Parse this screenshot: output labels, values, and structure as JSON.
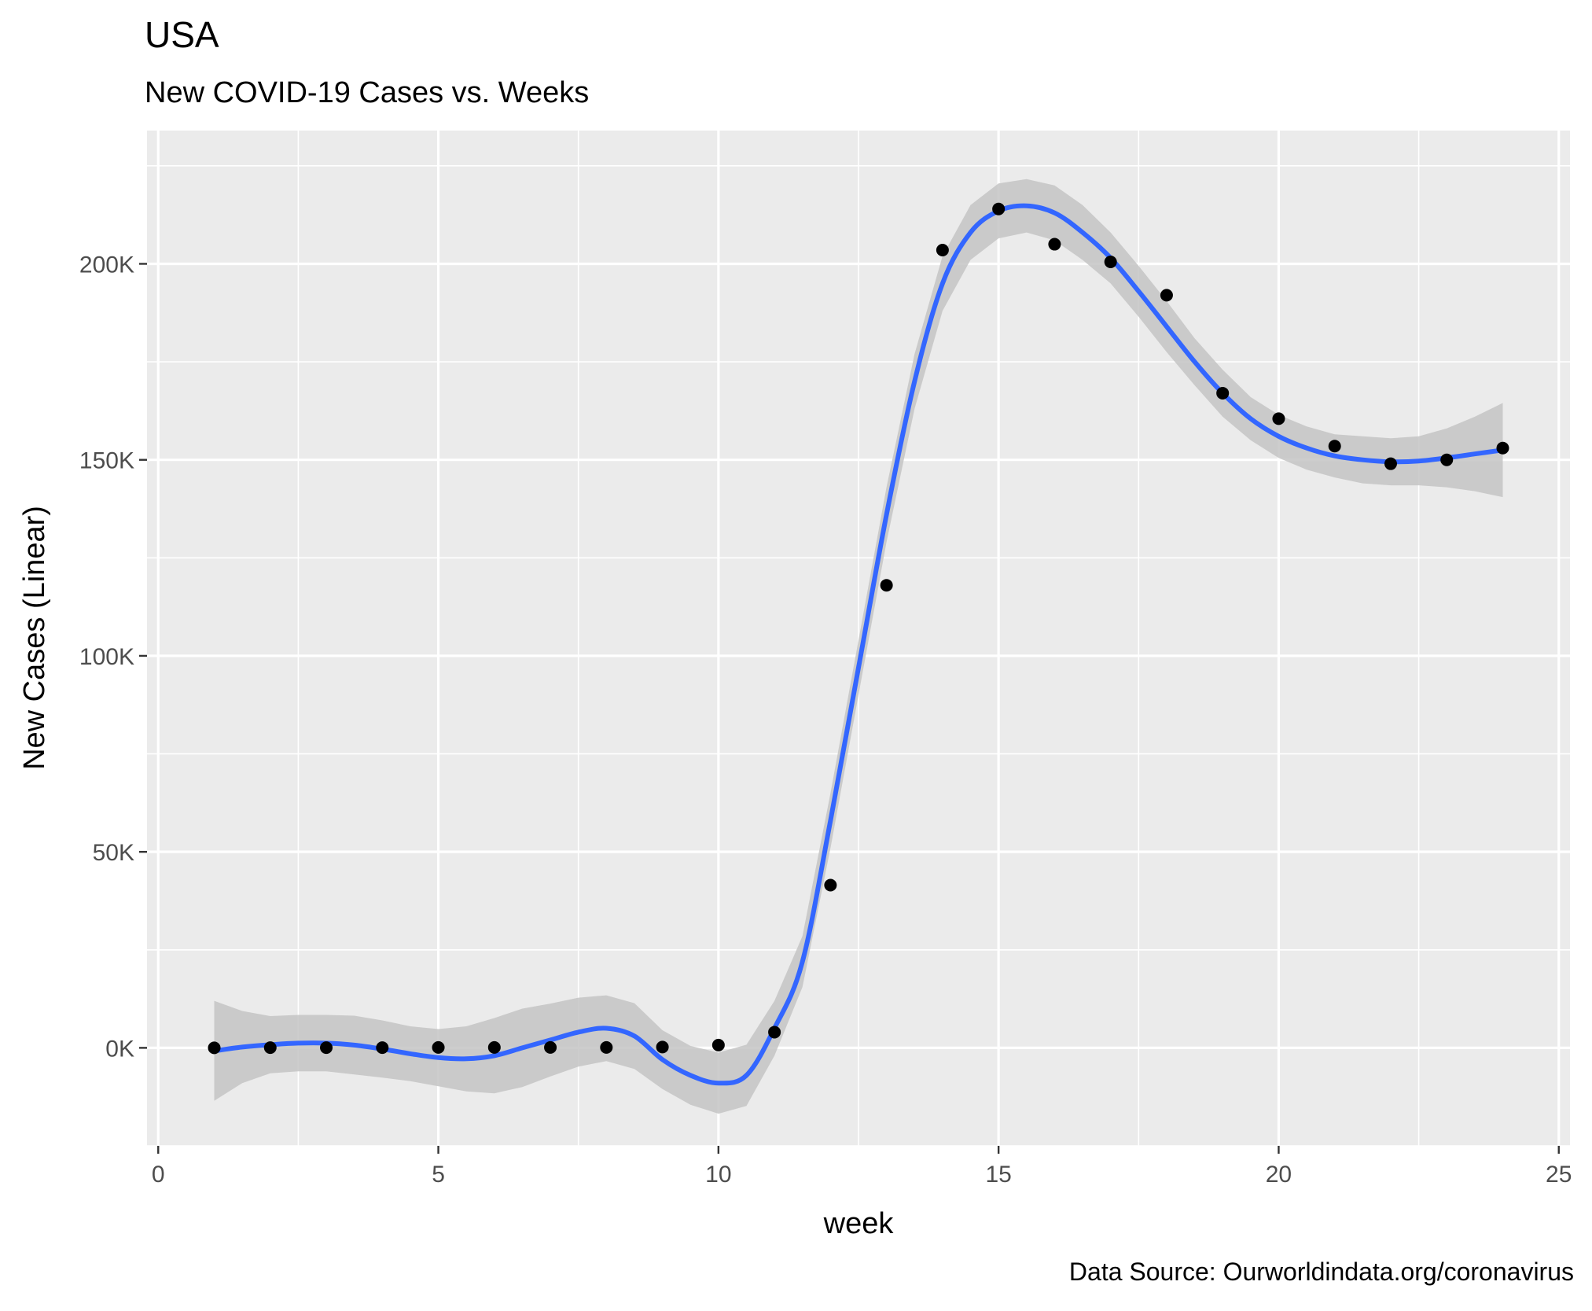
{
  "chart_data": {
    "type": "scatter",
    "title": "USA",
    "subtitle": "New COVID-19 Cases vs. Weeks",
    "xlabel": "week",
    "ylabel": "New Cases (Linear)",
    "caption": "Data Source: Ourworldindata.org/coronavirus",
    "xlim": [
      -0.2,
      25.2
    ],
    "ylim": [
      -25000,
      234000
    ],
    "x_ticks": [
      0,
      5,
      10,
      15,
      20,
      25
    ],
    "x_tick_labels": [
      "0",
      "5",
      "10",
      "15",
      "20",
      "25"
    ],
    "y_ticks": [
      0,
      50000,
      100000,
      150000,
      200000
    ],
    "y_tick_labels": [
      "0K",
      "50K",
      "100K",
      "150K",
      "200K"
    ],
    "grid": true,
    "legend": "none",
    "colors": {
      "panel": "#ebebeb",
      "grid": "#ffffff",
      "points": "#000000",
      "smooth_line": "#3366ff",
      "confidence_band": "#c4c4c4"
    },
    "series": [
      {
        "type": "scatter",
        "x": [
          1,
          2,
          3,
          4,
          5,
          6,
          7,
          8,
          9,
          10,
          11,
          12,
          13,
          14,
          15,
          16,
          17,
          18,
          19,
          20,
          21,
          22,
          23,
          24
        ],
        "y": [
          0,
          50,
          50,
          50,
          100,
          100,
          100,
          100,
          200,
          700,
          4000,
          41500,
          118000,
          203500,
          214000,
          205000,
          200500,
          192000,
          167000,
          160500,
          153500,
          149000,
          150000,
          153000
        ]
      },
      {
        "type": "smooth",
        "x": [
          1,
          1.5,
          2,
          2.5,
          3,
          3.5,
          4,
          4.5,
          5,
          5.5,
          6,
          6.5,
          7,
          7.5,
          8,
          8.5,
          9,
          9.5,
          10,
          10.5,
          11,
          11.5,
          12,
          12.5,
          13,
          13.5,
          14,
          14.5,
          15,
          15.5,
          16,
          16.5,
          17,
          17.5,
          18,
          18.5,
          19,
          19.5,
          20,
          20.5,
          21,
          21.5,
          22,
          22.5,
          23,
          23.5,
          24
        ],
        "y": [
          -800,
          200,
          800,
          1200,
          1200,
          700,
          -300,
          -1500,
          -2500,
          -2800,
          -2000,
          0,
          2000,
          4000,
          5000,
          3000,
          -3000,
          -7000,
          -9000,
          -7000,
          5000,
          22000,
          58000,
          97000,
          136000,
          170000,
          195000,
          208000,
          213500,
          214800,
          213000,
          208000,
          201500,
          193000,
          184000,
          175000,
          167000,
          160500,
          156000,
          153000,
          151000,
          150000,
          149500,
          149700,
          150500,
          151500,
          152500
        ],
        "ci_low": [
          -13500,
          -9000,
          -6500,
          -6000,
          -6000,
          -6800,
          -7600,
          -8500,
          -9800,
          -11100,
          -11600,
          -10000,
          -7300,
          -4800,
          -3400,
          -5400,
          -10500,
          -14500,
          -16800,
          -14800,
          -2000,
          15500,
          51000,
          90000,
          129000,
          163000,
          188000,
          201000,
          206500,
          208000,
          206000,
          201000,
          195000,
          186500,
          177500,
          169000,
          161000,
          155000,
          150500,
          147500,
          145500,
          144000,
          143500,
          143500,
          143000,
          142000,
          140500
        ],
        "ci_high": [
          12000,
          9400,
          8100,
          8400,
          8400,
          8200,
          7000,
          5500,
          4800,
          5500,
          7600,
          10000,
          11300,
          12800,
          13400,
          11400,
          4500,
          500,
          -1200,
          800,
          12000,
          28500,
          65000,
          104000,
          143000,
          177000,
          202000,
          215000,
          220500,
          221600,
          220000,
          215000,
          208000,
          199500,
          190500,
          181000,
          173000,
          166000,
          161500,
          158500,
          156500,
          156000,
          155500,
          156000,
          158000,
          161000,
          164500
        ]
      }
    ]
  }
}
